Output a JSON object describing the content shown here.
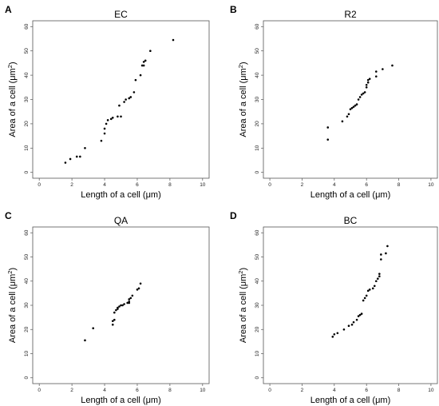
{
  "figure": {
    "xlabel": "Length of a cell (μm)",
    "ylabel_prefix": "Area of a cell (μm",
    "ylabel_sup": "2",
    "ylabel_suffix": ")"
  },
  "chart_data": [
    {
      "type": "scatter",
      "panel": "A",
      "title": "EC",
      "xlabel": "Length of a cell (μm)",
      "ylabel": "Area of a cell (μm²)",
      "xlim": [
        0,
        10
      ],
      "ylim": [
        0,
        60
      ],
      "xticks": [
        "0",
        "2",
        "4",
        "6",
        "8",
        "10"
      ],
      "yticks": [
        "0",
        "10",
        "20",
        "30",
        "40",
        "50",
        "60"
      ],
      "points": [
        [
          1.6,
          4
        ],
        [
          1.9,
          5.5
        ],
        [
          2.3,
          6.5
        ],
        [
          2.5,
          6.5
        ],
        [
          2.8,
          10
        ],
        [
          3.8,
          13
        ],
        [
          4.0,
          16
        ],
        [
          4.0,
          18
        ],
        [
          4.1,
          20
        ],
        [
          4.2,
          21.5
        ],
        [
          4.4,
          22
        ],
        [
          4.5,
          22.5
        ],
        [
          4.8,
          23
        ],
        [
          5.0,
          23
        ],
        [
          4.9,
          27.5
        ],
        [
          5.2,
          29
        ],
        [
          5.3,
          30
        ],
        [
          5.5,
          30.5
        ],
        [
          5.6,
          31
        ],
        [
          5.8,
          33
        ],
        [
          5.9,
          38
        ],
        [
          6.2,
          40
        ],
        [
          6.3,
          44
        ],
        [
          6.4,
          44
        ],
        [
          6.4,
          45.5
        ],
        [
          6.5,
          46
        ],
        [
          6.8,
          50
        ],
        [
          8.2,
          54.5
        ]
      ]
    },
    {
      "type": "scatter",
      "panel": "B",
      "title": "R2",
      "xlabel": "Length of a cell (μm)",
      "ylabel": "Area of a cell (μm²)",
      "xlim": [
        0,
        10
      ],
      "ylim": [
        0,
        60
      ],
      "xticks": [
        "0",
        "2",
        "4",
        "6",
        "8",
        "10"
      ],
      "yticks": [
        "0",
        "10",
        "20",
        "30",
        "40",
        "50",
        "60"
      ],
      "points": [
        [
          3.6,
          13.5
        ],
        [
          3.6,
          18.5
        ],
        [
          4.5,
          21
        ],
        [
          4.8,
          23
        ],
        [
          4.9,
          24
        ],
        [
          5.0,
          26
        ],
        [
          5.1,
          26.5
        ],
        [
          5.2,
          27
        ],
        [
          5.3,
          27.5
        ],
        [
          5.4,
          28
        ],
        [
          5.5,
          30
        ],
        [
          5.6,
          31
        ],
        [
          5.7,
          32
        ],
        [
          5.8,
          32.5
        ],
        [
          5.9,
          33
        ],
        [
          6.0,
          35
        ],
        [
          6.0,
          36
        ],
        [
          6.1,
          37
        ],
        [
          6.1,
          38
        ],
        [
          6.2,
          38.5
        ],
        [
          6.6,
          39.5
        ],
        [
          6.6,
          41.5
        ],
        [
          7.0,
          42.5
        ],
        [
          7.6,
          44
        ]
      ]
    },
    {
      "type": "scatter",
      "panel": "C",
      "title": "QA",
      "xlabel": "Length of a cell (μm)",
      "ylabel": "Area of a cell (μm²)",
      "xlim": [
        0,
        10
      ],
      "ylim": [
        0,
        60
      ],
      "xticks": [
        "0",
        "2",
        "4",
        "6",
        "8",
        "10"
      ],
      "yticks": [
        "0",
        "10",
        "20",
        "30",
        "40",
        "50",
        "60"
      ],
      "points": [
        [
          2.8,
          15.5
        ],
        [
          3.3,
          20.5
        ],
        [
          4.5,
          22
        ],
        [
          4.5,
          23.5
        ],
        [
          4.6,
          24
        ],
        [
          4.6,
          27
        ],
        [
          4.7,
          28
        ],
        [
          4.8,
          28.5
        ],
        [
          4.8,
          29
        ],
        [
          4.9,
          29.5
        ],
        [
          5.0,
          30
        ],
        [
          5.1,
          30
        ],
        [
          5.2,
          30.5
        ],
        [
          5.4,
          31
        ],
        [
          5.5,
          31
        ],
        [
          5.5,
          31.5
        ],
        [
          5.5,
          32.5
        ],
        [
          5.6,
          33
        ],
        [
          5.7,
          34
        ],
        [
          6.0,
          36.5
        ],
        [
          6.1,
          37
        ],
        [
          6.2,
          39
        ]
      ]
    },
    {
      "type": "scatter",
      "panel": "D",
      "title": "BC",
      "xlabel": "Length of a cell (μm)",
      "ylabel": "Area of a cell (μm²)",
      "xlim": [
        0,
        10
      ],
      "ylim": [
        0,
        60
      ],
      "xticks": [
        "0",
        "2",
        "4",
        "6",
        "8",
        "10"
      ],
      "yticks": [
        "0",
        "10",
        "20",
        "30",
        "40",
        "50",
        "60"
      ],
      "points": [
        [
          3.9,
          17
        ],
        [
          4.0,
          18
        ],
        [
          4.2,
          18.5
        ],
        [
          4.6,
          20
        ],
        [
          4.9,
          21.5
        ],
        [
          5.1,
          22
        ],
        [
          5.2,
          23
        ],
        [
          5.4,
          24
        ],
        [
          5.5,
          25.5
        ],
        [
          5.6,
          26
        ],
        [
          5.7,
          26.5
        ],
        [
          5.8,
          32
        ],
        [
          5.9,
          33
        ],
        [
          6.0,
          34
        ],
        [
          6.1,
          36
        ],
        [
          6.2,
          36.5
        ],
        [
          6.4,
          37
        ],
        [
          6.5,
          38
        ],
        [
          6.6,
          40
        ],
        [
          6.7,
          41
        ],
        [
          6.8,
          42
        ],
        [
          6.8,
          43
        ],
        [
          6.9,
          49
        ],
        [
          6.9,
          51
        ],
        [
          7.2,
          51.5
        ],
        [
          7.3,
          54.5
        ]
      ]
    }
  ]
}
